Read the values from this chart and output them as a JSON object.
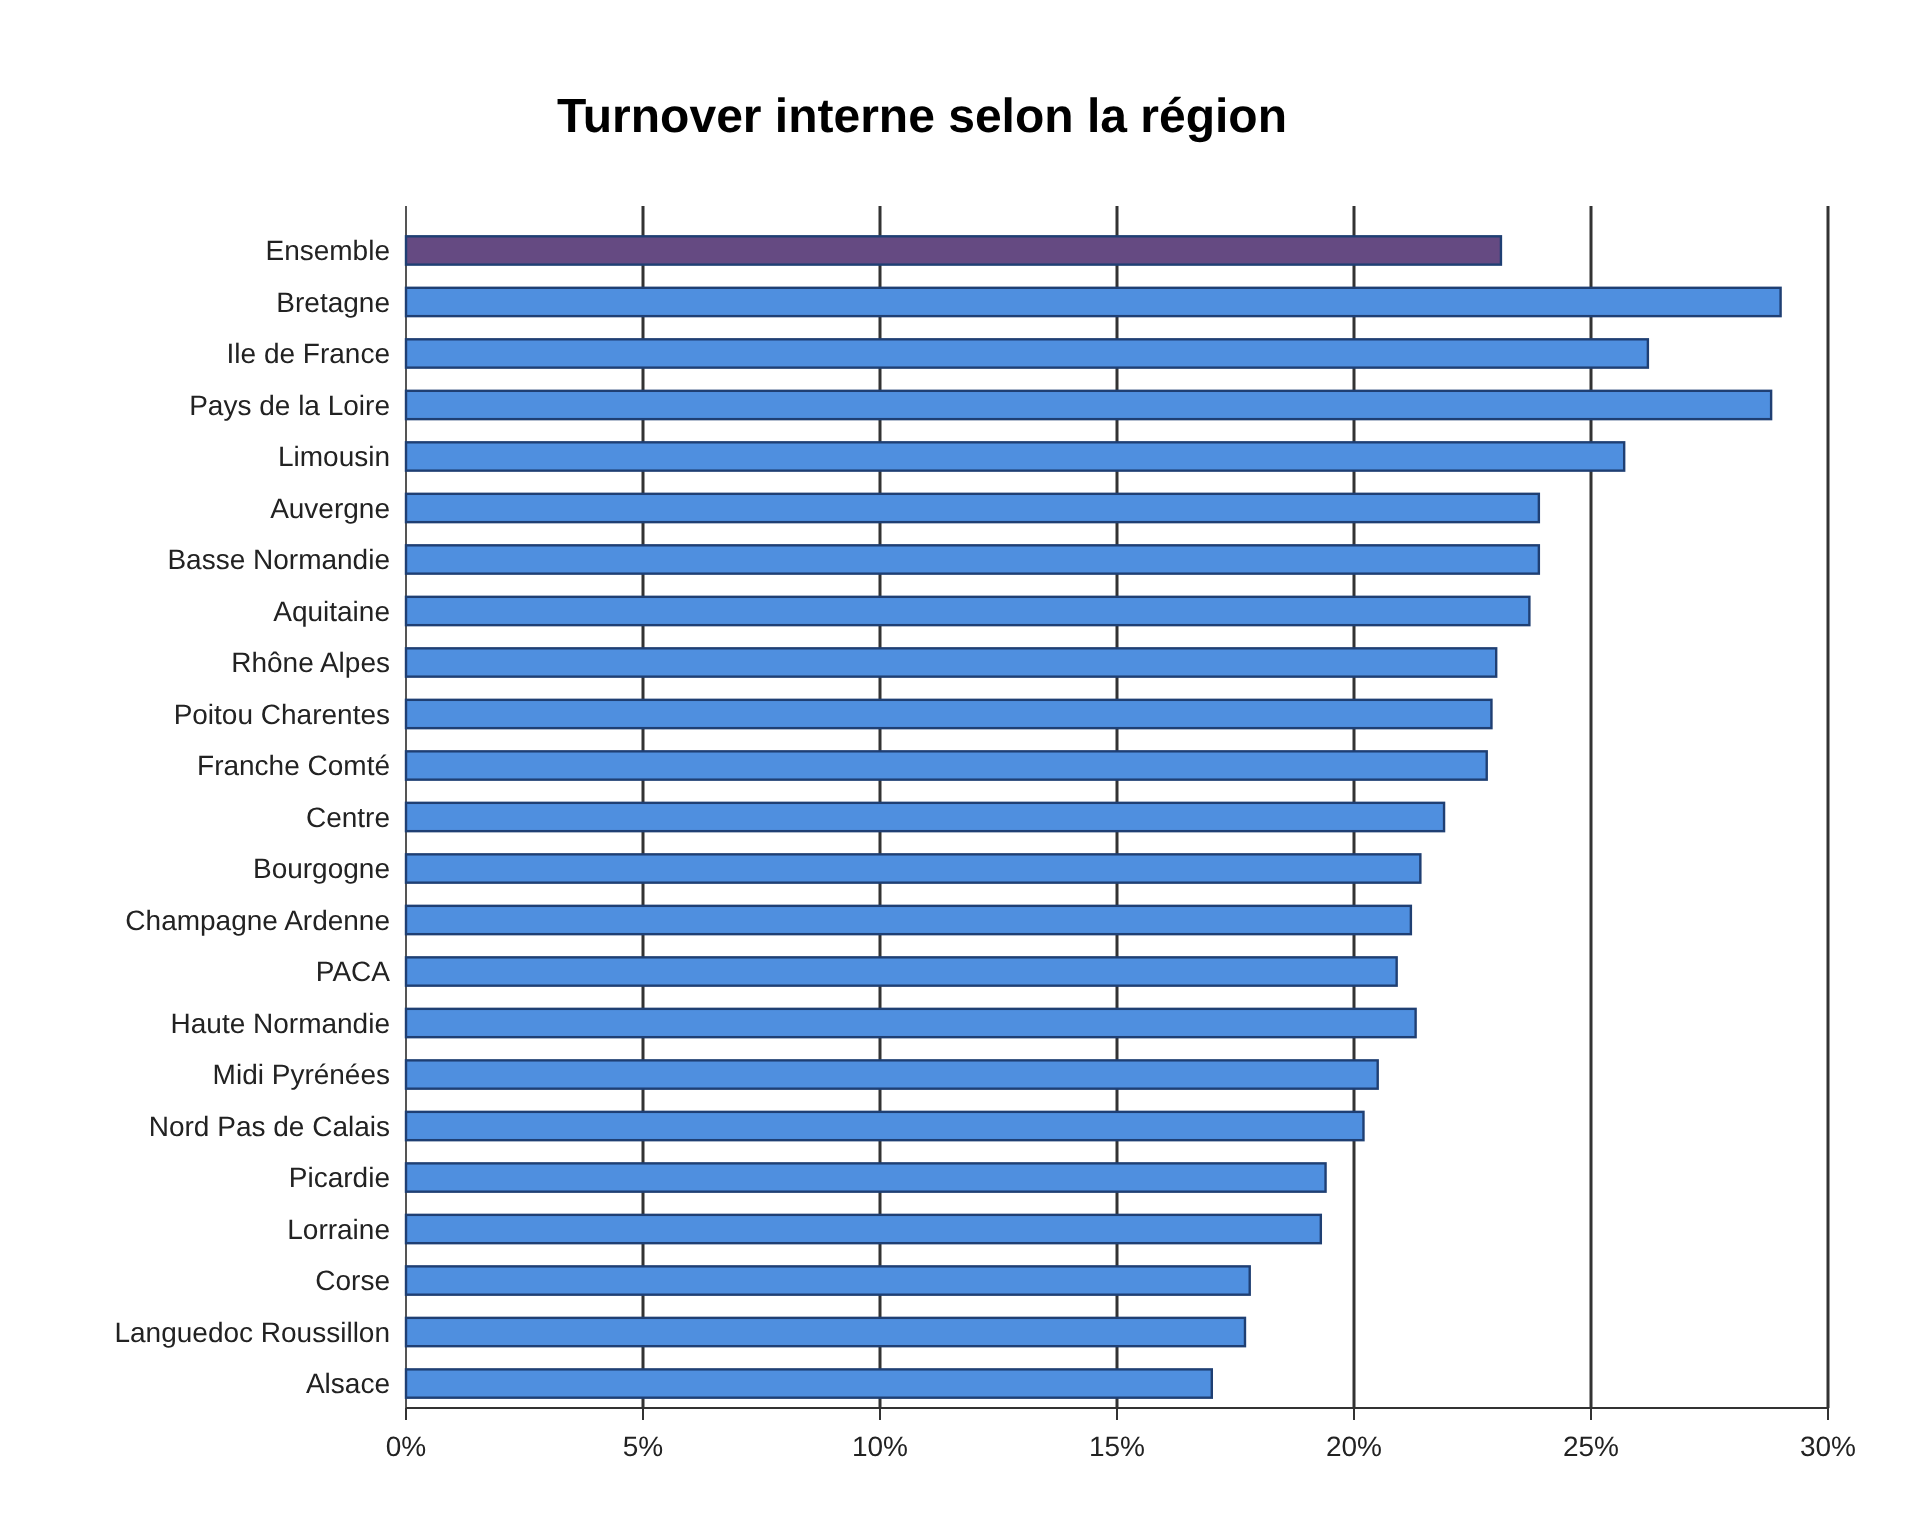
{
  "chart_data": {
    "type": "bar",
    "orientation": "horizontal",
    "title": "Turnover interne selon la région",
    "categories": [
      "Ensemble",
      "Bretagne",
      "Ile de France",
      "Pays de la Loire",
      "Limousin",
      "Auvergne",
      "Basse Normandie",
      "Aquitaine",
      "Rhône Alpes",
      "Poitou Charentes",
      "Franche Comté",
      "Centre",
      "Bourgogne",
      "Champagne Ardenne",
      "PACA",
      "Haute Normandie",
      "Midi Pyrénées",
      "Nord Pas de Calais",
      "Picardie",
      "Lorraine",
      "Corse",
      "Languedoc Roussillon",
      "Alsace"
    ],
    "values": [
      23.1,
      29.0,
      26.2,
      28.8,
      25.7,
      23.9,
      23.9,
      23.7,
      23.0,
      22.9,
      22.8,
      21.9,
      21.4,
      21.2,
      20.9,
      21.3,
      20.5,
      20.2,
      19.4,
      19.3,
      17.8,
      17.7,
      17.0
    ],
    "colors": [
      "#654a82",
      "#4f8fdf",
      "#4f8fdf",
      "#4f8fdf",
      "#4f8fdf",
      "#4f8fdf",
      "#4f8fdf",
      "#4f8fdf",
      "#4f8fdf",
      "#4f8fdf",
      "#4f8fdf",
      "#4f8fdf",
      "#4f8fdf",
      "#4f8fdf",
      "#4f8fdf",
      "#4f8fdf",
      "#4f8fdf",
      "#4f8fdf",
      "#4f8fdf",
      "#4f8fdf",
      "#4f8fdf",
      "#4f8fdf",
      "#4f8fdf"
    ],
    "xlim": [
      0,
      30
    ],
    "xticks": [
      {
        "value": 0,
        "label": "0%"
      },
      {
        "value": 5,
        "label": "5%"
      },
      {
        "value": 10,
        "label": "10%"
      },
      {
        "value": 15,
        "label": "15%"
      },
      {
        "value": 20,
        "label": "20%"
      },
      {
        "value": 25,
        "label": "25%"
      },
      {
        "value": 30,
        "label": "30%"
      }
    ],
    "grid": "x"
  }
}
